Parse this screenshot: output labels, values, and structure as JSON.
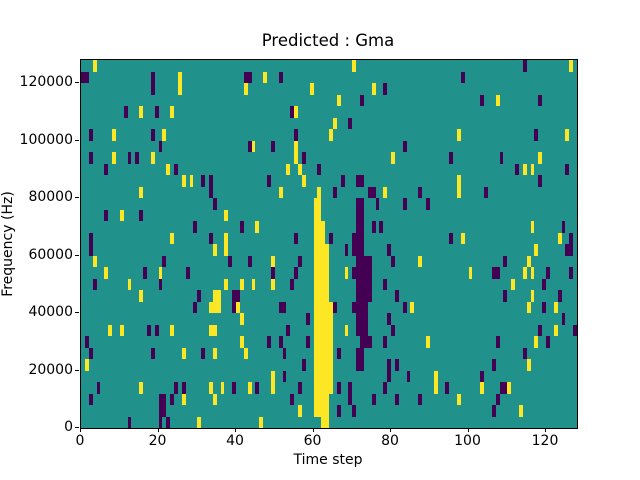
{
  "chart_data": {
    "type": "heatmap",
    "title": "Predicted : Gma",
    "xlabel": "Time step",
    "ylabel": "Frequency (Hz)",
    "xlim": [
      0,
      128
    ],
    "ylim": [
      0,
      128000
    ],
    "x_ticks": [
      0,
      20,
      40,
      60,
      80,
      100,
      120
    ],
    "y_ticks": [
      0,
      20000,
      40000,
      60000,
      80000,
      100000,
      120000
    ],
    "grid": {
      "cols": 128,
      "rows": 32,
      "hz_per_row": 4000
    },
    "legend": null,
    "colors": {
      "background": "#21918c",
      "high": "#fde725",
      "low": "#440154",
      "spine": "#000000",
      "text": "#000000"
    },
    "cells": [
      [
        60,
        1,
        1,
        1,
        19
      ],
      [
        61,
        1,
        1,
        1,
        20
      ],
      [
        62,
        2,
        1,
        1,
        16
      ],
      [
        63,
        2,
        1,
        1,
        14
      ],
      [
        64,
        3,
        1,
        1,
        8
      ],
      [
        62,
        0,
        1,
        2,
        2
      ],
      [
        71,
        17,
        0,
        2,
        1
      ],
      [
        70,
        16,
        0,
        3,
        1
      ],
      [
        70,
        15,
        0,
        3,
        1
      ],
      [
        71,
        11,
        0,
        4,
        4
      ],
      [
        70,
        13,
        0,
        1,
        1
      ],
      [
        70,
        10,
        0,
        4,
        1
      ],
      [
        71,
        8,
        0,
        3,
        2
      ],
      [
        72,
        7,
        0,
        3,
        1
      ],
      [
        71,
        5,
        0,
        2,
        2
      ],
      [
        71,
        18,
        0,
        2,
        2
      ],
      [
        71,
        21,
        0,
        2,
        1
      ],
      [
        74,
        20,
        0,
        1,
        1
      ],
      [
        76,
        19,
        0,
        1,
        1
      ],
      [
        75,
        17,
        0,
        1,
        1
      ],
      [
        77,
        17,
        0,
        1,
        1
      ],
      [
        75,
        20,
        0,
        1,
        1
      ],
      [
        65,
        20,
        0,
        1,
        1
      ],
      [
        64,
        16,
        0,
        1,
        1
      ],
      [
        61,
        22,
        0,
        1,
        1
      ],
      [
        3,
        31,
        1
      ],
      [
        0,
        30,
        0,
        2,
        1
      ],
      [
        18,
        29,
        0,
        1,
        2
      ],
      [
        25,
        29,
        1,
        1,
        2
      ],
      [
        42,
        30,
        0,
        2,
        1
      ],
      [
        42,
        29,
        1
      ],
      [
        11,
        27,
        0
      ],
      [
        15,
        27,
        1
      ],
      [
        19,
        27,
        0
      ],
      [
        23,
        27,
        1
      ],
      [
        2,
        25,
        0
      ],
      [
        8,
        25,
        1
      ],
      [
        18,
        25,
        0
      ],
      [
        21,
        25,
        1
      ],
      [
        20,
        24,
        0
      ],
      [
        8,
        23,
        1
      ],
      [
        12,
        23,
        0
      ],
      [
        14,
        23,
        0
      ],
      [
        18,
        23,
        1
      ],
      [
        2,
        23,
        0
      ],
      [
        6,
        22,
        0
      ],
      [
        22,
        22,
        1
      ],
      [
        24,
        22,
        0
      ],
      [
        26,
        21,
        1
      ],
      [
        31,
        21,
        0
      ],
      [
        47,
        30,
        1
      ],
      [
        51,
        30,
        0
      ],
      [
        70,
        31,
        1
      ],
      [
        59,
        29,
        1
      ],
      [
        75,
        29,
        1
      ],
      [
        78,
        29,
        0
      ],
      [
        66,
        28,
        1
      ],
      [
        72,
        28,
        0
      ],
      [
        54,
        27,
        0
      ],
      [
        55,
        27,
        1
      ],
      [
        65,
        26,
        1
      ],
      [
        69,
        26,
        0
      ],
      [
        64,
        25,
        1
      ],
      [
        55,
        25,
        0
      ],
      [
        43,
        24,
        0
      ],
      [
        44,
        24,
        1
      ],
      [
        49,
        24,
        0
      ],
      [
        55,
        24,
        1
      ],
      [
        83,
        24,
        0
      ],
      [
        55,
        23,
        1
      ],
      [
        57,
        23,
        0
      ],
      [
        80,
        23,
        1
      ],
      [
        48,
        21,
        0
      ],
      [
        53,
        22,
        1
      ],
      [
        57,
        21,
        1
      ],
      [
        67,
        21,
        0
      ],
      [
        56,
        22,
        1
      ],
      [
        114,
        31,
        0
      ],
      [
        126,
        31,
        1
      ],
      [
        98,
        30,
        0
      ],
      [
        118,
        28,
        0
      ],
      [
        103,
        28,
        0
      ],
      [
        107,
        28,
        1
      ],
      [
        97,
        25,
        1
      ],
      [
        117,
        25,
        0
      ],
      [
        125,
        25,
        1
      ],
      [
        95,
        23,
        0
      ],
      [
        108,
        23,
        0
      ],
      [
        118,
        23,
        1
      ],
      [
        112,
        22,
        0
      ],
      [
        114,
        22,
        1
      ],
      [
        116,
        22,
        1
      ],
      [
        125,
        22,
        0
      ],
      [
        118,
        21,
        0
      ],
      [
        28,
        21,
        1
      ],
      [
        33,
        20,
        0,
        1,
        2
      ],
      [
        15,
        20,
        1
      ],
      [
        34,
        19,
        0
      ],
      [
        6,
        18,
        0
      ],
      [
        10,
        18,
        1
      ],
      [
        15,
        18,
        0
      ],
      [
        37,
        18,
        1
      ],
      [
        41,
        17,
        0
      ],
      [
        29,
        17,
        0
      ],
      [
        2,
        16,
        0
      ],
      [
        23,
        16,
        1
      ],
      [
        33,
        16,
        0
      ],
      [
        37,
        15,
        1,
        1,
        2
      ],
      [
        2,
        15,
        0
      ],
      [
        34,
        15,
        1
      ],
      [
        38,
        14,
        0
      ],
      [
        43,
        14,
        0
      ],
      [
        3,
        14,
        1
      ],
      [
        21,
        14,
        0
      ],
      [
        6,
        13,
        1
      ],
      [
        16,
        13,
        0
      ],
      [
        20,
        13,
        1
      ],
      [
        27,
        13,
        0
      ],
      [
        3,
        12,
        0
      ],
      [
        12,
        12,
        1
      ],
      [
        20,
        12,
        0
      ],
      [
        44,
        12,
        1
      ],
      [
        34,
        10,
        1,
        2,
        2
      ],
      [
        37,
        12,
        1
      ],
      [
        39,
        10,
        0,
        2,
        2
      ],
      [
        41,
        12,
        1
      ],
      [
        30,
        11,
        0
      ],
      [
        15,
        11,
        1
      ],
      [
        51,
        20,
        1
      ],
      [
        75,
        20,
        0
      ],
      [
        78,
        20,
        1
      ],
      [
        87,
        20,
        0
      ],
      [
        83,
        19,
        0
      ],
      [
        89,
        19,
        0
      ],
      [
        45,
        17,
        1
      ],
      [
        55,
        16,
        0
      ],
      [
        79,
        15,
        0
      ],
      [
        49,
        14,
        1
      ],
      [
        56,
        14,
        0
      ],
      [
        68,
        15,
        0
      ],
      [
        68,
        13,
        1
      ],
      [
        80,
        14,
        0
      ],
      [
        87,
        14,
        1
      ],
      [
        49,
        13,
        0
      ],
      [
        55,
        13,
        0
      ],
      [
        54,
        12,
        0
      ],
      [
        49,
        12,
        1
      ],
      [
        78,
        12,
        0
      ],
      [
        81,
        11,
        0
      ],
      [
        51,
        10,
        0,
        2,
        1
      ],
      [
        65,
        10,
        0
      ],
      [
        97,
        20,
        1,
        1,
        2
      ],
      [
        104,
        20,
        0
      ],
      [
        118,
        21,
        0
      ],
      [
        116,
        17,
        1
      ],
      [
        124,
        17,
        0
      ],
      [
        95,
        16,
        0
      ],
      [
        98,
        16,
        1
      ],
      [
        123,
        16,
        1
      ],
      [
        126,
        16,
        0
      ],
      [
        125,
        15,
        0,
        2,
        1
      ],
      [
        117,
        15,
        1
      ],
      [
        109,
        14,
        0
      ],
      [
        115,
        14,
        1
      ],
      [
        100,
        13,
        1
      ],
      [
        106,
        13,
        0,
        2,
        1
      ],
      [
        114,
        13,
        1
      ],
      [
        116,
        13,
        1
      ],
      [
        119,
        12,
        0
      ],
      [
        120,
        13,
        0
      ],
      [
        111,
        12,
        1
      ],
      [
        126,
        13,
        0
      ],
      [
        109,
        11,
        0
      ],
      [
        116,
        11,
        1
      ],
      [
        123,
        11,
        0
      ],
      [
        115,
        10,
        1
      ],
      [
        119,
        10,
        0
      ],
      [
        29,
        10,
        0
      ],
      [
        33,
        10,
        1
      ],
      [
        40,
        10,
        1
      ],
      [
        41,
        9,
        1
      ],
      [
        33,
        8,
        1,
        2,
        1
      ],
      [
        7,
        8,
        1
      ],
      [
        10,
        8,
        1
      ],
      [
        17,
        8,
        0
      ],
      [
        19,
        8,
        0
      ],
      [
        23,
        8,
        1
      ],
      [
        1,
        7,
        0
      ],
      [
        2,
        6,
        0
      ],
      [
        1,
        5,
        1
      ],
      [
        18,
        6,
        0
      ],
      [
        26,
        6,
        1
      ],
      [
        31,
        6,
        0
      ],
      [
        34,
        6,
        1
      ],
      [
        41,
        7,
        1
      ],
      [
        42,
        6,
        1
      ],
      [
        4,
        3,
        0
      ],
      [
        2,
        2,
        0
      ],
      [
        15,
        3,
        1
      ],
      [
        24,
        3,
        0
      ],
      [
        26,
        3,
        0
      ],
      [
        26,
        2,
        1
      ],
      [
        23,
        2,
        0
      ],
      [
        33,
        3,
        1
      ],
      [
        36,
        3,
        1
      ],
      [
        39,
        3,
        0
      ],
      [
        43,
        3,
        1
      ],
      [
        20,
        1,
        0,
        2,
        2
      ],
      [
        34,
        2,
        1
      ],
      [
        12,
        0,
        0
      ],
      [
        30,
        0,
        1
      ],
      [
        20,
        0,
        0
      ],
      [
        22,
        0,
        0
      ],
      [
        58,
        9,
        0
      ],
      [
        79,
        9,
        0
      ],
      [
        83,
        10,
        0
      ],
      [
        85,
        10,
        1
      ],
      [
        53,
        8,
        0
      ],
      [
        68,
        8,
        1
      ],
      [
        80,
        8,
        0
      ],
      [
        48,
        7,
        0
      ],
      [
        51,
        7,
        0
      ],
      [
        58,
        7,
        0
      ],
      [
        78,
        7,
        0
      ],
      [
        89,
        7,
        1
      ],
      [
        52,
        6,
        0
      ],
      [
        57,
        5,
        0
      ],
      [
        66,
        6,
        0
      ],
      [
        79,
        5,
        0
      ],
      [
        81,
        5,
        0
      ],
      [
        49,
        3,
        1,
        1,
        2
      ],
      [
        52,
        4,
        0
      ],
      [
        79,
        4,
        0
      ],
      [
        84,
        4,
        0
      ],
      [
        45,
        3,
        0
      ],
      [
        54,
        2,
        0
      ],
      [
        56,
        3,
        0
      ],
      [
        66,
        3,
        0
      ],
      [
        69,
        2,
        0,
        1,
        2
      ],
      [
        75,
        2,
        0
      ],
      [
        78,
        3,
        0
      ],
      [
        81,
        2,
        0
      ],
      [
        87,
        2,
        0
      ],
      [
        56,
        1,
        1
      ],
      [
        66,
        1,
        0
      ],
      [
        70,
        1,
        0
      ],
      [
        46,
        0,
        1
      ],
      [
        122,
        10,
        1
      ],
      [
        124,
        9,
        0
      ],
      [
        127,
        8,
        0
      ],
      [
        122,
        8,
        1
      ],
      [
        118,
        8,
        0
      ],
      [
        120,
        7,
        0
      ],
      [
        117,
        7,
        1
      ],
      [
        107,
        7,
        0
      ],
      [
        114,
        6,
        0
      ],
      [
        115,
        5,
        1
      ],
      [
        106,
        5,
        0
      ],
      [
        103,
        4,
        0
      ],
      [
        91,
        3,
        1,
        1,
        2
      ],
      [
        94,
        3,
        0
      ],
      [
        103,
        3,
        1
      ],
      [
        108,
        3,
        0,
        2,
        1
      ],
      [
        110,
        3,
        1
      ],
      [
        97,
        2,
        1
      ],
      [
        107,
        2,
        0
      ],
      [
        106,
        1,
        0
      ],
      [
        113,
        1,
        1
      ]
    ]
  }
}
